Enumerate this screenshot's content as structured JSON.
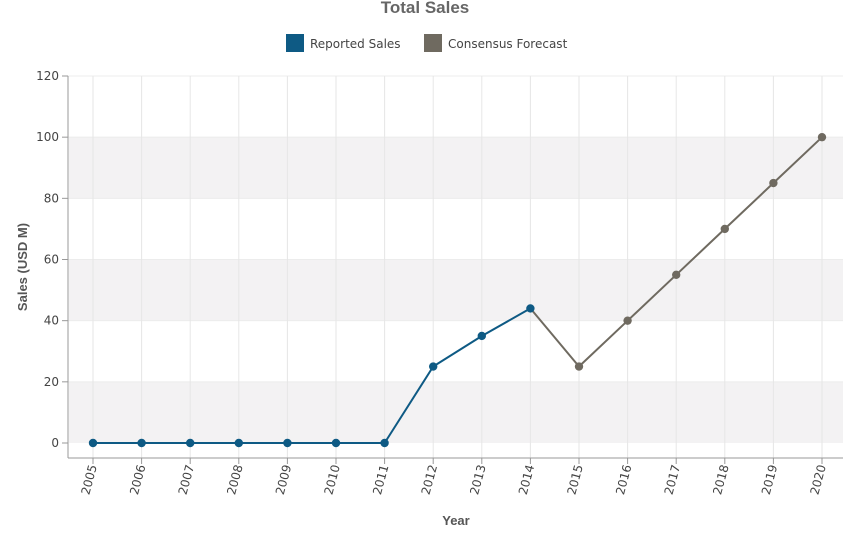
{
  "chart_data": {
    "type": "line",
    "title": "Total Sales",
    "xlabel": "Year",
    "ylabel": "Sales  (USD M)",
    "ylim": [
      0,
      120
    ],
    "yticks": [
      0,
      20,
      40,
      60,
      80,
      100,
      120
    ],
    "categories": [
      "2005",
      "2006",
      "2007",
      "2008",
      "2009",
      "2010",
      "2011",
      "2012",
      "2013",
      "2014",
      "2015",
      "2016",
      "2017",
      "2018",
      "2019",
      "2020"
    ],
    "grid": true,
    "legend_position": "top-center",
    "series": [
      {
        "name": "Reported Sales",
        "color": "#0e5a84",
        "x": [
          "2005",
          "2006",
          "2007",
          "2008",
          "2009",
          "2010",
          "2011",
          "2012",
          "2013",
          "2014"
        ],
        "values": [
          0,
          0,
          0,
          0,
          0,
          0,
          0,
          25,
          35,
          44
        ]
      },
      {
        "name": "Consensus Forecast",
        "color": "#6f6a60",
        "x": [
          "2014",
          "2015",
          "2016",
          "2017",
          "2018",
          "2019",
          "2020"
        ],
        "values": [
          44,
          25,
          40,
          55,
          70,
          85,
          100
        ]
      }
    ]
  }
}
